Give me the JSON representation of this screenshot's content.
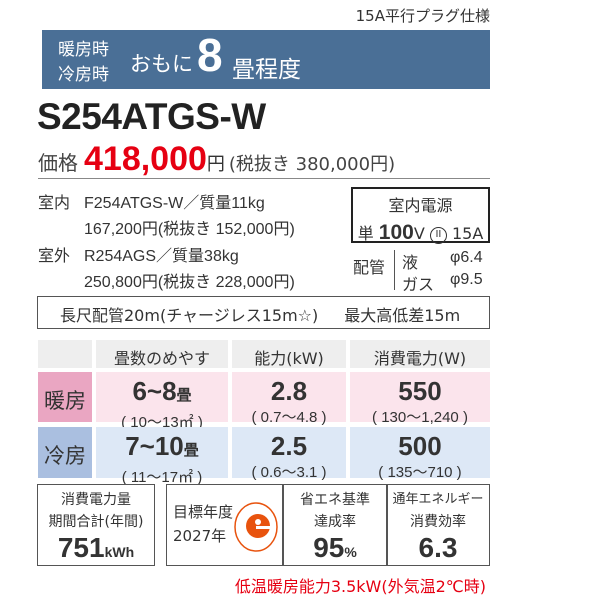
{
  "plug_spec": "15A平行プラグ仕様",
  "banner": {
    "heating": "暖房時",
    "cooling": "冷房時",
    "omoni": "おもに",
    "tatami": "8",
    "unit": "畳程度"
  },
  "model": "S254ATGS-W",
  "price": {
    "label": "価格",
    "value": "418,000",
    "yen": "円",
    "tax_excluded": "(税抜き 380,000円)"
  },
  "indoor": {
    "label": "室内",
    "model_weight": "F254ATGS-W／質量11kg",
    "price": "167,200円(税抜き 152,000円)"
  },
  "outdoor": {
    "label": "室外",
    "model_weight": "R254AGS／質量38kg",
    "price": "250,800円(税抜き 228,000円)"
  },
  "power": {
    "title": "室内電源",
    "single": "単",
    "voltage": "100",
    "v_unit": "V",
    "plug_icon": "II",
    "amp": "15A"
  },
  "piping": {
    "label": "配管",
    "liquid": "液",
    "liquid_size": "φ6.4",
    "gas": "ガス",
    "gas_size": "φ9.5"
  },
  "long_pipe": {
    "left": "長尺配管20m(チャージレス15m☆)",
    "right": "最大高低差15m"
  },
  "table": {
    "headers": [
      "畳数のめやす",
      "能力(kW)",
      "消費電力(W)"
    ],
    "rows": [
      {
        "label": "暖房",
        "tatami": "6~8",
        "tatami_unit": "畳",
        "area": "( 10～13㎡ )",
        "capacity": "2.8",
        "capacity_range": "( 0.7～4.8 )",
        "power": "550",
        "power_range": "( 130～1,240 )"
      },
      {
        "label": "冷房",
        "tatami": "7~10",
        "tatami_unit": "畳",
        "area": "( 11～17㎡ )",
        "capacity": "2.5",
        "capacity_range": "( 0.6～3.1 )",
        "power": "500",
        "power_range": "( 135～710 )"
      }
    ]
  },
  "annual": {
    "line1": "消費電力量",
    "line2": "期間合計(年間)",
    "value": "751",
    "unit": "kWh"
  },
  "target": {
    "line1": "目標年度",
    "line2": "2027年"
  },
  "achievement": {
    "line1": "省エネ基準",
    "line2": "達成率",
    "value": "95",
    "unit": "%"
  },
  "apf": {
    "line1": "通年エネルギー",
    "line2": "消費効率",
    "value": "6.3"
  },
  "footer": "低温暖房能力3.5kW(外気温2℃時)",
  "colors": {
    "banner": "#4a6f96",
    "price": "#e60012",
    "heat_label": "#eaa6c2",
    "heat_cell": "#fbe4ec",
    "cool_label": "#aabfe0",
    "cool_cell": "#dde8f6",
    "emark": "#e8530e"
  }
}
